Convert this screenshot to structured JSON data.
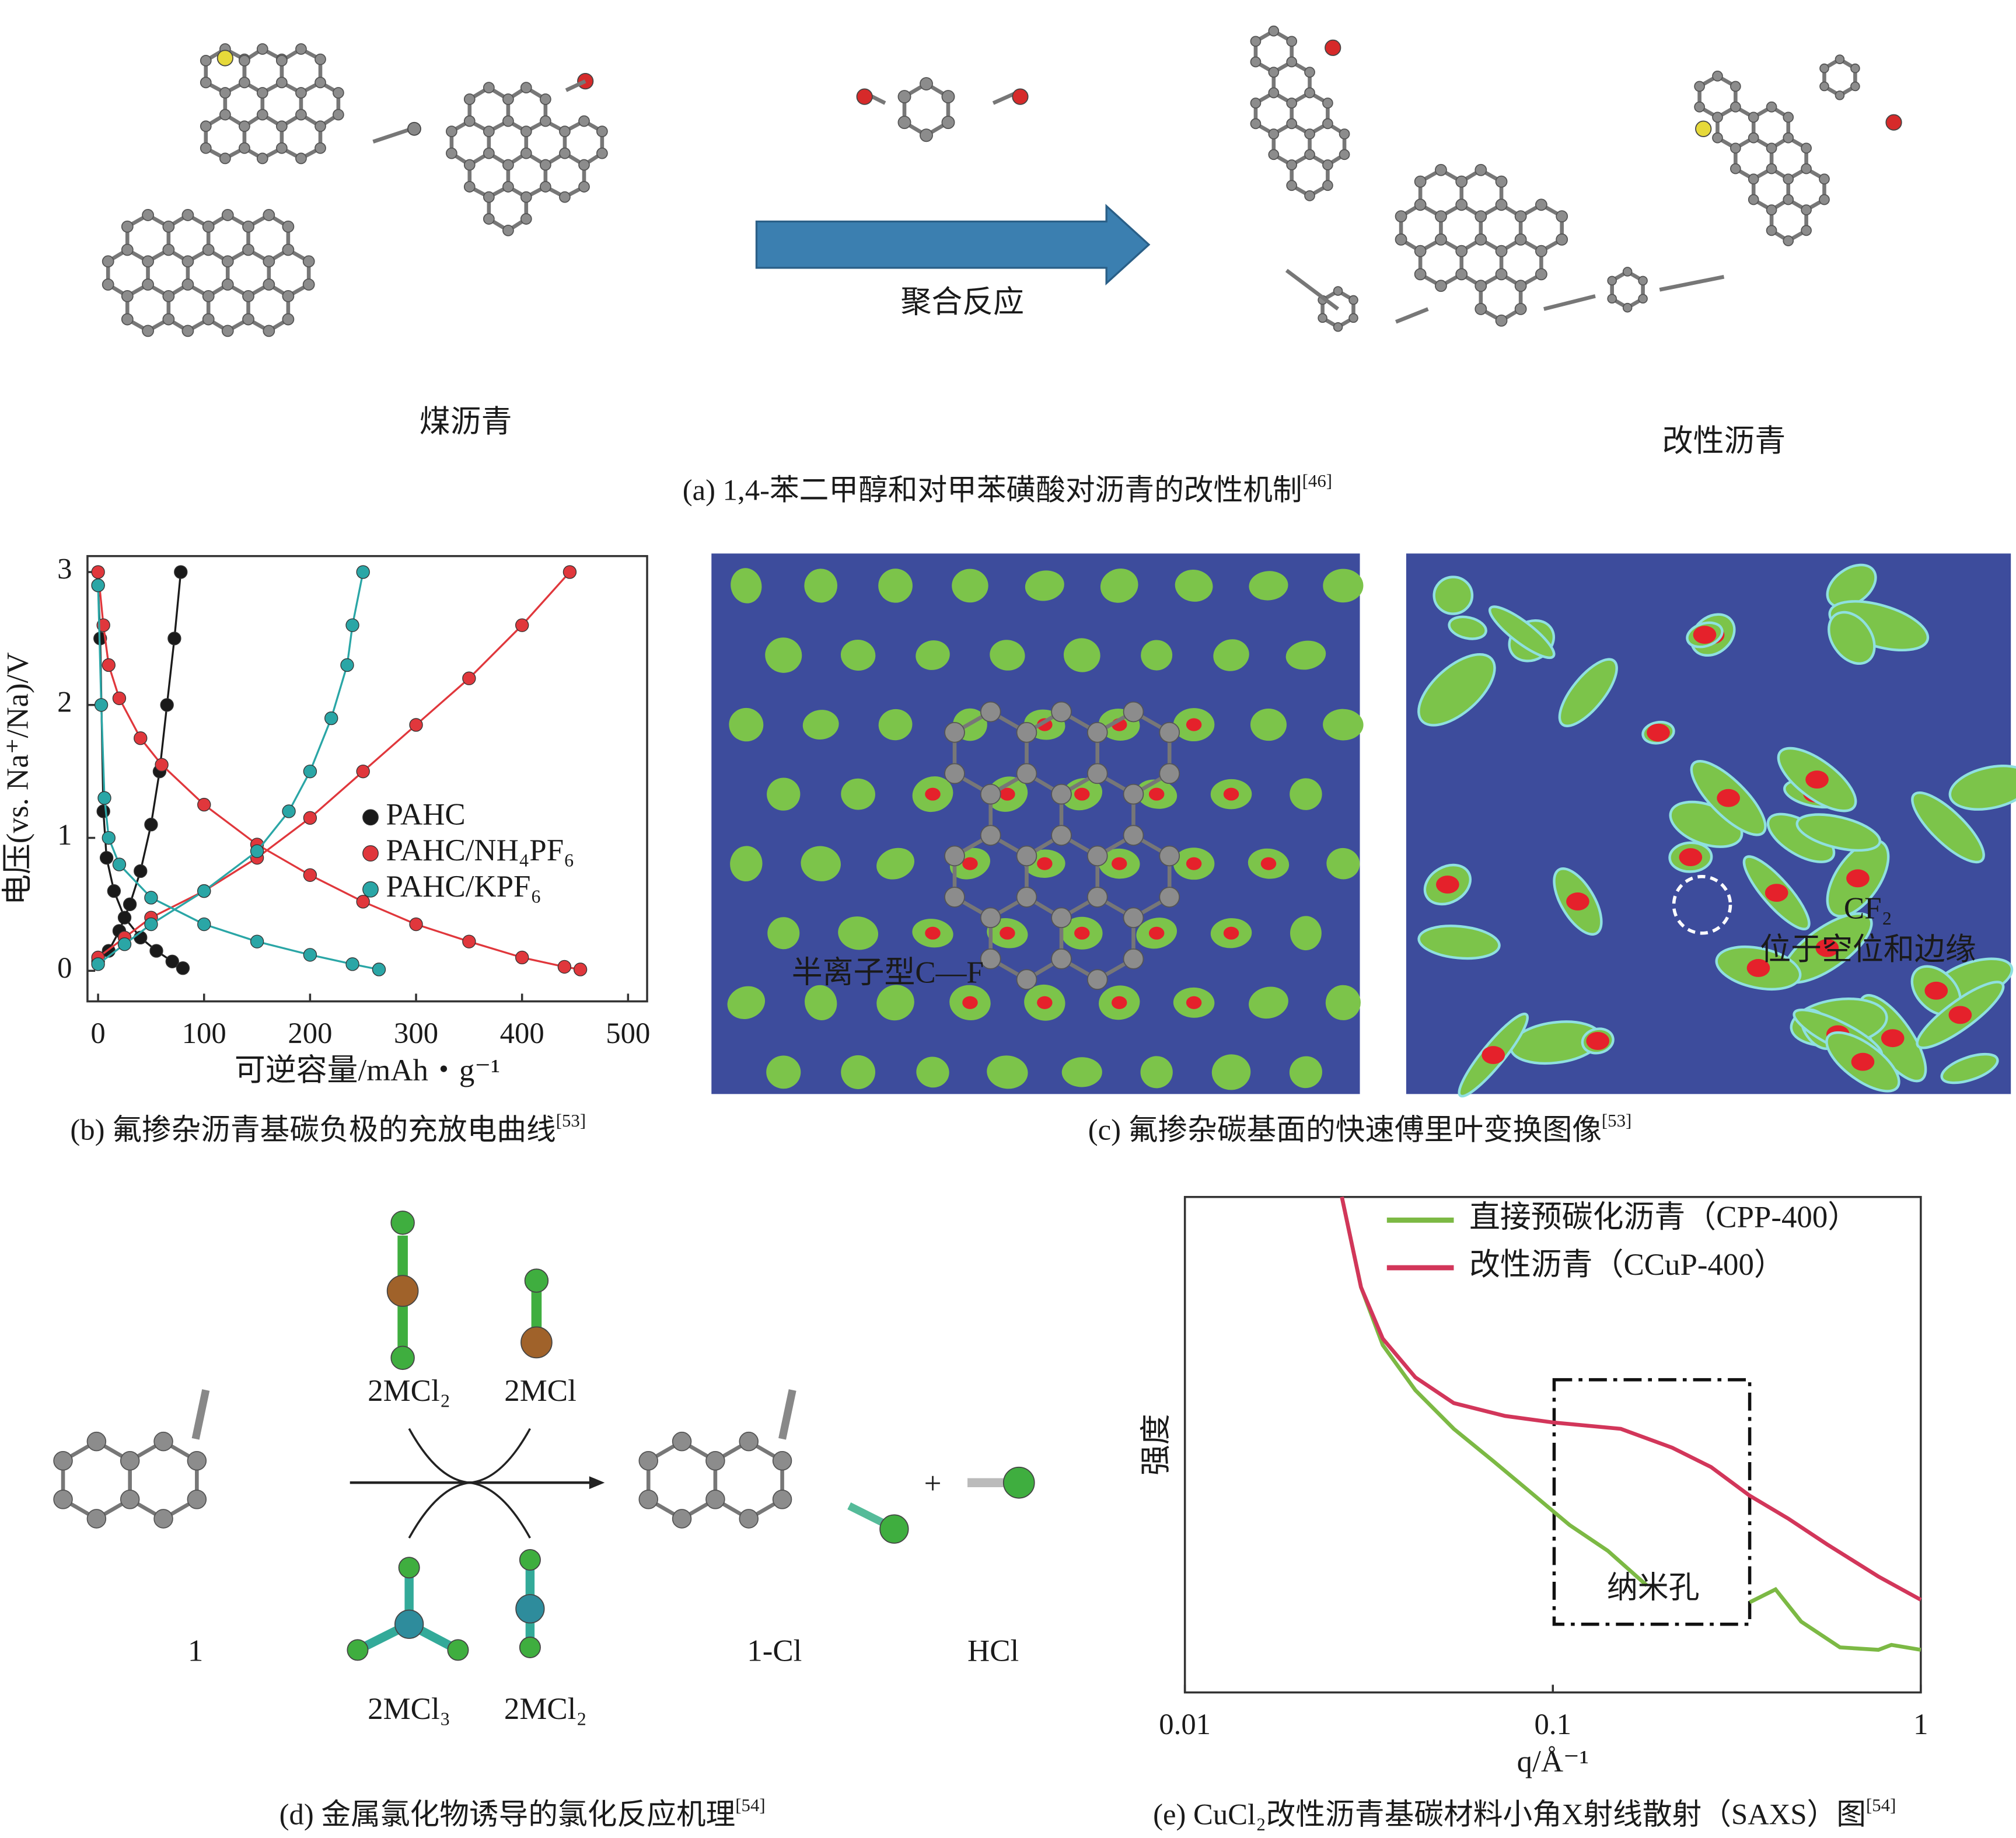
{
  "panel_a": {
    "caption": "(a) 1,4-苯二甲醇和对甲苯磺酸对沥青的改性机制",
    "caption_ref": "[46]",
    "left_label": "煤沥青",
    "arrow_label": "聚合反应",
    "right_label": "改性沥青"
  },
  "panel_c": {
    "caption": "(c) 氟掺杂碳基面的快速傅里叶变换图像",
    "caption_ref": "[53]",
    "left_label": "半离子型C—F",
    "right_label_1": "CF₂",
    "right_label_2": "位于空位和边缘"
  },
  "panel_d": {
    "caption": "(d) 金属氯化物诱导的氯化反应机理",
    "caption_ref": "[54]",
    "top_left": "2MCl₂",
    "top_right": "2MCl",
    "bottom_left": "2MCl₃",
    "bottom_right": "2MCl₂",
    "reactant": "1",
    "product": "1-Cl",
    "byproduct": "HCl",
    "plus": "+"
  },
  "chart_data": [
    {
      "type": "line",
      "caption": "(b) 氟掺杂沥青基碳负极的充放电曲线",
      "caption_ref": "[53]",
      "x_label": "可逆容量/mAh・g⁻¹",
      "y_label": "电压(vs. Na⁺/Na)/V",
      "xlim": [
        -10,
        518
      ],
      "ylim": [
        -0.23,
        3.12
      ],
      "xticks": [
        0,
        100,
        200,
        300,
        400,
        500
      ],
      "yticks": [
        0,
        1,
        2,
        3
      ],
      "marker": "circle",
      "legend": "center-right",
      "series": [
        {
          "name": "PAHC",
          "color": "#1a1a1a",
          "discharge_x": [
            0,
            2,
            5,
            8,
            15,
            25,
            40,
            55,
            70,
            80
          ],
          "discharge_values": [
            2.9,
            2.5,
            1.2,
            0.85,
            0.6,
            0.4,
            0.25,
            0.15,
            0.07,
            0.02
          ],
          "charge_x": [
            0,
            10,
            20,
            30,
            40,
            50,
            58,
            65,
            72,
            78
          ],
          "charge_values": [
            0.07,
            0.15,
            0.3,
            0.5,
            0.75,
            1.1,
            1.5,
            2.0,
            2.5,
            3.0
          ]
        },
        {
          "name": "PAHC/NH₄PF₆",
          "color": "#e0373c",
          "discharge_x": [
            0,
            5,
            10,
            20,
            40,
            60,
            100,
            150,
            200,
            250,
            300,
            350,
            400,
            440,
            455
          ],
          "discharge_values": [
            3.0,
            2.6,
            2.3,
            2.05,
            1.75,
            1.55,
            1.25,
            0.95,
            0.72,
            0.52,
            0.35,
            0.22,
            0.1,
            0.03,
            0.01
          ],
          "charge_x": [
            0,
            25,
            50,
            100,
            150,
            200,
            250,
            300,
            350,
            400,
            445
          ],
          "charge_values": [
            0.1,
            0.25,
            0.4,
            0.6,
            0.85,
            1.15,
            1.5,
            1.85,
            2.2,
            2.6,
            3.0
          ]
        },
        {
          "name": "PAHC/KPF₆",
          "color": "#2aa6a6",
          "discharge_x": [
            0,
            3,
            6,
            10,
            20,
            50,
            100,
            150,
            200,
            240,
            265
          ],
          "discharge_values": [
            2.9,
            2.0,
            1.3,
            1.0,
            0.8,
            0.55,
            0.35,
            0.22,
            0.12,
            0.05,
            0.01
          ],
          "charge_x": [
            0,
            25,
            50,
            100,
            150,
            180,
            200,
            220,
            235,
            240,
            250
          ],
          "charge_values": [
            0.05,
            0.2,
            0.35,
            0.6,
            0.9,
            1.2,
            1.5,
            1.9,
            2.3,
            2.6,
            3.0
          ]
        }
      ]
    },
    {
      "type": "line",
      "caption": "(e) CuCl₂改性沥青基碳材料小角X射线散射（SAXS）图",
      "caption_ref": "[54]",
      "x_label": "q/Å⁻¹",
      "y_label": "强度",
      "x_log": true,
      "xlim": [
        0.01,
        1
      ],
      "xticks": [
        0.01,
        0.1,
        1
      ],
      "ylim": [
        0,
        100
      ],
      "marker": "line",
      "legend": "upper-right",
      "annotation": "纳米孔",
      "series": [
        {
          "name": "直接预碳化沥青（CPP-400）",
          "color": "#7cb944",
          "x": [
            0.0267,
            0.0301,
            0.0345,
            0.0423,
            0.0538,
            0.0686,
            0.0873,
            0.111,
            0.141,
            0.18,
            0.3,
            0.343,
            0.403,
            0.473,
            0.603,
            0.767,
            0.832,
            1
          ],
          "values": [
            100,
            81.8,
            70.1,
            61.0,
            53.2,
            46.8,
            40.3,
            33.8,
            28.6,
            21.6,
            null,
            18.2,
            20.8,
            14.3,
            9.1,
            8.6,
            9.6,
            8.6
          ]
        },
        {
          "name": "改性沥青（CCuP-400）",
          "color": "#d2365a",
          "x": [
            0.0267,
            0.0301,
            0.0345,
            0.0423,
            0.0538,
            0.0742,
            0.1,
            0.153,
            0.211,
            0.269,
            0.343,
            0.436,
            0.556,
            0.767,
            1
          ],
          "values": [
            100,
            81.8,
            71.4,
            63.6,
            58.4,
            55.8,
            54.5,
            53.2,
            49.4,
            45.5,
            39.7,
            35.1,
            29.9,
            23.4,
            18.7
          ]
        }
      ]
    }
  ]
}
